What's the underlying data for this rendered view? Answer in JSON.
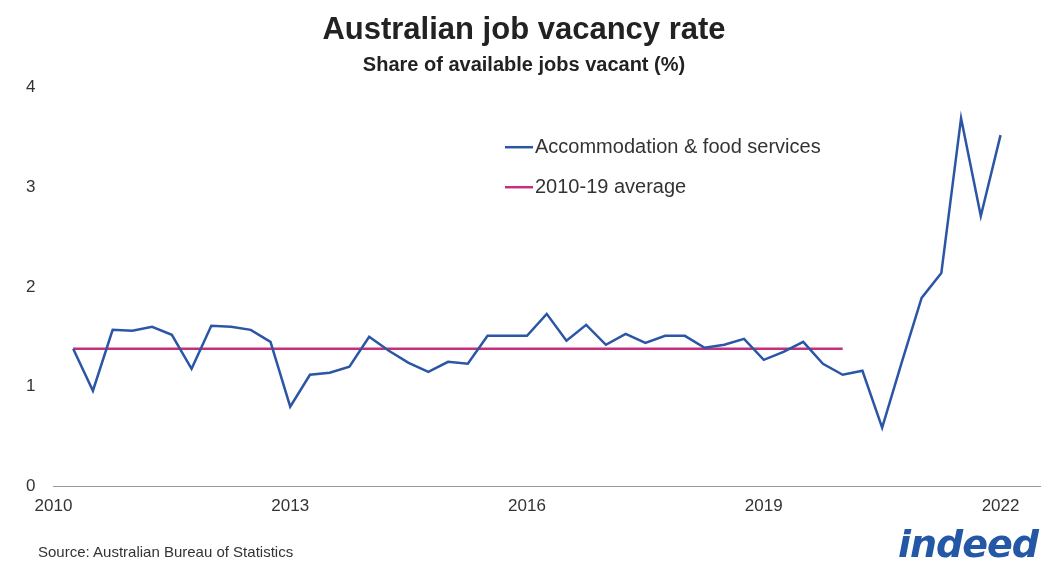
{
  "chart_data": {
    "type": "line",
    "title": "Australian job vacancy rate",
    "subtitle": "Share of available jobs vacant (%)",
    "source": "Source: Australian Bureau of Statistics",
    "brand": "indeed",
    "x": [
      2010.25,
      2010.5,
      2010.75,
      2011,
      2011.25,
      2011.5,
      2011.75,
      2012,
      2012.25,
      2012.5,
      2012.75,
      2013,
      2013.25,
      2013.5,
      2013.75,
      2014,
      2014.25,
      2014.5,
      2014.75,
      2015,
      2015.25,
      2015.5,
      2015.75,
      2016,
      2016.25,
      2016.5,
      2016.75,
      2017,
      2017.25,
      2017.5,
      2017.75,
      2018,
      2018.25,
      2018.5,
      2018.75,
      2019,
      2019.25,
      2019.5,
      2019.75,
      2020,
      2020.25,
      2020.5,
      2020.75,
      2021,
      2021.25,
      2021.5,
      2021.75,
      2022
    ],
    "series": [
      {
        "name": "Accommodation & food services",
        "color": "#2b56a5",
        "values": [
          1.38,
          0.96,
          1.57,
          1.56,
          1.6,
          1.52,
          1.18,
          1.61,
          1.6,
          1.57,
          1.45,
          0.8,
          1.12,
          1.14,
          1.2,
          1.5,
          1.36,
          1.24,
          1.15,
          1.25,
          1.23,
          1.51,
          1.51,
          1.51,
          1.73,
          1.46,
          1.62,
          1.42,
          1.53,
          1.44,
          1.51,
          1.51,
          1.39,
          1.42,
          1.48,
          1.27,
          1.35,
          1.45,
          1.23,
          1.12,
          1.16,
          0.59,
          1.25,
          1.89,
          2.14,
          3.69,
          2.71,
          3.52
        ]
      },
      {
        "name": "2010-19 average",
        "color": "#c2307f",
        "values": [
          1.38,
          1.38,
          1.38,
          1.38,
          1.38,
          1.38,
          1.38,
          1.38,
          1.38,
          1.38,
          1.38,
          1.38,
          1.38,
          1.38,
          1.38,
          1.38,
          1.38,
          1.38,
          1.38,
          1.38,
          1.38,
          1.38,
          1.38,
          1.38,
          1.38,
          1.38,
          1.38,
          1.38,
          1.38,
          1.38,
          1.38,
          1.38,
          1.38,
          1.38,
          1.38,
          1.38,
          1.38,
          1.38,
          1.38,
          1.38,
          null,
          null,
          null,
          null,
          null,
          null,
          null,
          null
        ]
      }
    ],
    "xlim": [
      2010,
      2022.5
    ],
    "xticks": [
      2010,
      2013,
      2016,
      2019,
      2022
    ],
    "ylim": [
      0,
      4
    ],
    "yticks": [
      0,
      1,
      2,
      3,
      4
    ],
    "grid": false,
    "legend": "top right"
  }
}
